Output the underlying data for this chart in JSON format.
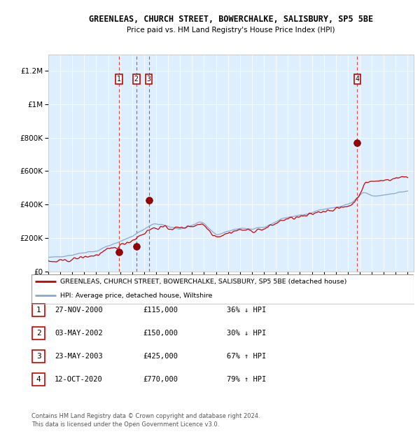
{
  "title": "GREENLEAS, CHURCH STREET, BOWERCHALKE, SALISBURY, SP5 5BE",
  "subtitle": "Price paid vs. HM Land Registry's House Price Index (HPI)",
  "ylabel_ticks": [
    "£0",
    "£200K",
    "£400K",
    "£600K",
    "£800K",
    "£1M",
    "£1.2M"
  ],
  "ytick_vals": [
    0,
    200000,
    400000,
    600000,
    800000,
    1000000,
    1200000
  ],
  "ylim": [
    0,
    1300000
  ],
  "xlim_start": 1995.0,
  "xlim_end": 2025.5,
  "plot_bg_color": "#ddeeff",
  "grid_color": "#ffffff",
  "red_line_color": "#cc0000",
  "blue_line_color": "#88aacc",
  "sale_dates": [
    2000.91,
    2002.34,
    2003.39,
    2020.79
  ],
  "sale_prices": [
    115000,
    150000,
    425000,
    770000
  ],
  "sale_labels": [
    "1",
    "2",
    "3",
    "4"
  ],
  "vline_color": "#dd4444",
  "legend_red_label": "GREENLEAS, CHURCH STREET, BOWERCHALKE, SALISBURY, SP5 5BE (detached house)",
  "legend_blue_label": "HPI: Average price, detached house, Wiltshire",
  "table_rows": [
    [
      "1",
      "27-NOV-2000",
      "£115,000",
      "36% ↓ HPI"
    ],
    [
      "2",
      "03-MAY-2002",
      "£150,000",
      "30% ↓ HPI"
    ],
    [
      "3",
      "23-MAY-2003",
      "£425,000",
      "67% ↑ HPI"
    ],
    [
      "4",
      "12-OCT-2020",
      "£770,000",
      "79% ↑ HPI"
    ]
  ],
  "footer": "Contains HM Land Registry data © Crown copyright and database right 2024.\nThis data is licensed under the Open Government Licence v3.0.",
  "hpi_years": [
    1995.0,
    1995.083,
    1995.167,
    1995.25,
    1995.333,
    1995.417,
    1995.5,
    1995.583,
    1995.667,
    1995.75,
    1995.833,
    1995.917,
    1996.0,
    1996.083,
    1996.167,
    1996.25,
    1996.333,
    1996.417,
    1996.5,
    1996.583,
    1996.667,
    1996.75,
    1996.833,
    1996.917,
    1997.0,
    1997.083,
    1997.167,
    1997.25,
    1997.333,
    1997.417,
    1997.5,
    1997.583,
    1997.667,
    1997.75,
    1997.833,
    1997.917,
    1998.0,
    1998.083,
    1998.167,
    1998.25,
    1998.333,
    1998.417,
    1998.5,
    1998.583,
    1998.667,
    1998.75,
    1998.833,
    1998.917,
    1999.0,
    1999.083,
    1999.167,
    1999.25,
    1999.333,
    1999.417,
    1999.5,
    1999.583,
    1999.667,
    1999.75,
    1999.833,
    1999.917,
    2000.0,
    2000.083,
    2000.167,
    2000.25,
    2000.333,
    2000.417,
    2000.5,
    2000.583,
    2000.667,
    2000.75,
    2000.833,
    2000.917,
    2001.0,
    2001.083,
    2001.167,
    2001.25,
    2001.333,
    2001.417,
    2001.5,
    2001.583,
    2001.667,
    2001.75,
    2001.833,
    2001.917,
    2002.0,
    2002.083,
    2002.167,
    2002.25,
    2002.333,
    2002.417,
    2002.5,
    2002.583,
    2002.667,
    2002.75,
    2002.833,
    2002.917,
    2003.0,
    2003.083,
    2003.167,
    2003.25,
    2003.333,
    2003.417,
    2003.5,
    2003.583,
    2003.667,
    2003.75,
    2003.833,
    2003.917,
    2004.0,
    2004.083,
    2004.167,
    2004.25,
    2004.333,
    2004.417,
    2004.5,
    2004.583,
    2004.667,
    2004.75,
    2004.833,
    2004.917,
    2005.0,
    2005.083,
    2005.167,
    2005.25,
    2005.333,
    2005.417,
    2005.5,
    2005.583,
    2005.667,
    2005.75,
    2005.833,
    2005.917,
    2006.0,
    2006.083,
    2006.167,
    2006.25,
    2006.333,
    2006.417,
    2006.5,
    2006.583,
    2006.667,
    2006.75,
    2006.833,
    2006.917,
    2007.0,
    2007.083,
    2007.167,
    2007.25,
    2007.333,
    2007.417,
    2007.5,
    2007.583,
    2007.667,
    2007.75,
    2007.833,
    2007.917,
    2008.0,
    2008.083,
    2008.167,
    2008.25,
    2008.333,
    2008.417,
    2008.5,
    2008.583,
    2008.667,
    2008.75,
    2008.833,
    2008.917,
    2009.0,
    2009.083,
    2009.167,
    2009.25,
    2009.333,
    2009.417,
    2009.5,
    2009.583,
    2009.667,
    2009.75,
    2009.833,
    2009.917,
    2010.0,
    2010.083,
    2010.167,
    2010.25,
    2010.333,
    2010.417,
    2010.5,
    2010.583,
    2010.667,
    2010.75,
    2010.833,
    2010.917,
    2011.0,
    2011.083,
    2011.167,
    2011.25,
    2011.333,
    2011.417,
    2011.5,
    2011.583,
    2011.667,
    2011.75,
    2011.833,
    2011.917,
    2012.0,
    2012.083,
    2012.167,
    2012.25,
    2012.333,
    2012.417,
    2012.5,
    2012.583,
    2012.667,
    2012.75,
    2012.833,
    2012.917,
    2013.0,
    2013.083,
    2013.167,
    2013.25,
    2013.333,
    2013.417,
    2013.5,
    2013.583,
    2013.667,
    2013.75,
    2013.833,
    2013.917,
    2014.0,
    2014.083,
    2014.167,
    2014.25,
    2014.333,
    2014.417,
    2014.5,
    2014.583,
    2014.667,
    2014.75,
    2014.833,
    2014.917,
    2015.0,
    2015.083,
    2015.167,
    2015.25,
    2015.333,
    2015.417,
    2015.5,
    2015.583,
    2015.667,
    2015.75,
    2015.833,
    2015.917,
    2016.0,
    2016.083,
    2016.167,
    2016.25,
    2016.333,
    2016.417,
    2016.5,
    2016.583,
    2016.667,
    2016.75,
    2016.833,
    2016.917,
    2017.0,
    2017.083,
    2017.167,
    2017.25,
    2017.333,
    2017.417,
    2017.5,
    2017.583,
    2017.667,
    2017.75,
    2017.833,
    2017.917,
    2018.0,
    2018.083,
    2018.167,
    2018.25,
    2018.333,
    2018.417,
    2018.5,
    2018.583,
    2018.667,
    2018.75,
    2018.833,
    2018.917,
    2019.0,
    2019.083,
    2019.167,
    2019.25,
    2019.333,
    2019.417,
    2019.5,
    2019.583,
    2019.667,
    2019.75,
    2019.833,
    2019.917,
    2020.0,
    2020.083,
    2020.167,
    2020.25,
    2020.333,
    2020.417,
    2020.5,
    2020.583,
    2020.667,
    2020.75,
    2020.833,
    2020.917,
    2021.0,
    2021.083,
    2021.167,
    2021.25,
    2021.333,
    2021.417,
    2021.5,
    2021.583,
    2021.667,
    2021.75,
    2021.833,
    2021.917,
    2022.0,
    2022.083,
    2022.167,
    2022.25,
    2022.333,
    2022.417,
    2022.5,
    2022.583,
    2022.667,
    2022.75,
    2022.833,
    2022.917,
    2023.0,
    2023.083,
    2023.167,
    2023.25,
    2023.333,
    2023.417,
    2023.5,
    2023.583,
    2023.667,
    2023.75,
    2023.833,
    2023.917,
    2024.0,
    2024.083,
    2024.167,
    2024.25,
    2024.333,
    2024.417,
    2024.5,
    2024.583,
    2024.667,
    2024.75,
    2024.833,
    2024.917,
    2025.0
  ],
  "hpi_base": [
    82000,
    82500,
    83000,
    83500,
    84000,
    84500,
    85000,
    85500,
    86000,
    86500,
    87000,
    87500,
    88000,
    88800,
    89600,
    90400,
    91200,
    92000,
    92800,
    93600,
    94400,
    95200,
    96000,
    96800,
    97600,
    99000,
    100400,
    101800,
    103200,
    104600,
    106000,
    107000,
    108000,
    109000,
    110000,
    111000,
    112000,
    113200,
    114400,
    115600,
    116800,
    117200,
    117600,
    118000,
    118400,
    118800,
    119200,
    119600,
    120000,
    122000,
    124000,
    127000,
    130000,
    133000,
    136000,
    139000,
    142000,
    145000,
    148000,
    150000,
    152000,
    154000,
    156000,
    158000,
    160000,
    162000,
    164000,
    166000,
    168000,
    170000,
    172000,
    175000,
    178000,
    181000,
    184000,
    187000,
    190000,
    193000,
    196000,
    198000,
    200000,
    202000,
    204000,
    206000,
    208000,
    212000,
    216000,
    220000,
    224000,
    228000,
    232000,
    236000,
    240000,
    243000,
    246000,
    249000,
    252000,
    256000,
    260000,
    264000,
    268000,
    271000,
    274000,
    277000,
    280000,
    281000,
    282000,
    282500,
    283000,
    283000,
    282000,
    281000,
    280000,
    279000,
    278000,
    277000,
    276000,
    274000,
    272000,
    270000,
    268000,
    266000,
    264000,
    263000,
    262000,
    261000,
    260000,
    259000,
    258000,
    257000,
    256000,
    255000,
    254000,
    255000,
    256000,
    258000,
    260000,
    262000,
    264000,
    266000,
    268000,
    270000,
    272000,
    274000,
    276000,
    278000,
    280000,
    283000,
    286000,
    289000,
    292000,
    294000,
    295000,
    294000,
    292000,
    289000,
    286000,
    280000,
    274000,
    268000,
    262000,
    256000,
    250000,
    244000,
    238000,
    232000,
    228000,
    224000,
    220000,
    220000,
    221000,
    222000,
    223000,
    224000,
    226000,
    228000,
    230000,
    232000,
    234000,
    236000,
    238000,
    240000,
    242000,
    244000,
    246000,
    248000,
    250000,
    252000,
    253000,
    254000,
    255000,
    256000,
    257000,
    258000,
    258000,
    258000,
    258000,
    257000,
    256000,
    255000,
    254000,
    253000,
    252000,
    252000,
    252000,
    252000,
    253000,
    254000,
    255000,
    256000,
    257000,
    258000,
    259000,
    260000,
    261000,
    262000,
    263000,
    265000,
    267000,
    270000,
    273000,
    276000,
    279000,
    282000,
    285000,
    288000,
    291000,
    294000,
    297000,
    300000,
    303000,
    306000,
    309000,
    312000,
    315000,
    317000,
    319000,
    320000,
    321000,
    322000,
    323000,
    324000,
    325000,
    326000,
    327000,
    328000,
    329000,
    330000,
    331000,
    332000,
    333000,
    334000,
    335000,
    336000,
    337000,
    338000,
    339000,
    340000,
    341000,
    342000,
    344000,
    346000,
    348000,
    350000,
    352000,
    354000,
    356000,
    358000,
    360000,
    362000,
    364000,
    366000,
    367000,
    368000,
    369000,
    370000,
    371000,
    372000,
    373000,
    374000,
    375000,
    376000,
    377000,
    378000,
    379000,
    380000,
    381000,
    382000,
    383000,
    384000,
    385000,
    386000,
    387000,
    388000,
    390000,
    392000,
    394000,
    396000,
    398000,
    400000,
    402000,
    404000,
    406000,
    408000,
    410000,
    415000,
    420000,
    425000,
    430000,
    435000,
    440000,
    445000,
    452000,
    458000,
    464000,
    468000,
    470000,
    470000,
    469000,
    467000,
    464000,
    461000,
    458000,
    456000,
    453000,
    451000,
    450000,
    449000,
    449000,
    450000,
    451000,
    452000,
    453000,
    454000,
    455000,
    456000,
    457000,
    458000,
    459000,
    460000,
    461000,
    462000,
    463000,
    464000,
    465000,
    466000,
    467000,
    468000,
    469000,
    470000,
    471000,
    472000,
    473000,
    474000,
    475000,
    476000,
    477000,
    478000,
    479000,
    480000,
    481000
  ],
  "red_base": [
    55000,
    55400,
    55800,
    56200,
    56600,
    57000,
    57400,
    57800,
    58200,
    58600,
    59000,
    59500,
    60000,
    60800,
    61600,
    62400,
    63200,
    64000,
    64800,
    65600,
    66400,
    67200,
    68000,
    69000,
    70000,
    71500,
    73000,
    74500,
    76000,
    77500,
    79000,
    80000,
    81000,
    82000,
    83000,
    84000,
    85000,
    86200,
    87400,
    88600,
    89800,
    90500,
    91200,
    91900,
    92600,
    93300,
    94000,
    95000,
    96000,
    98000,
    100000,
    103000,
    106000,
    109000,
    112000,
    115000,
    118000,
    121000,
    124000,
    126000,
    128000,
    130000,
    132000,
    134000,
    136000,
    138000,
    140000,
    142000,
    144000,
    146000,
    148000,
    151000,
    154000,
    157000,
    160000,
    163000,
    166000,
    169000,
    172000,
    174000,
    176000,
    178000,
    180000,
    182000,
    184000,
    188000,
    192000,
    196000,
    200000,
    204000,
    208000,
    212000,
    216000,
    219000,
    222000,
    225000,
    228000,
    232000,
    236000,
    240000,
    244000,
    247000,
    250000,
    252500,
    255000,
    256500,
    258000,
    259000,
    260000,
    260500,
    261000,
    261500,
    262000,
    262000,
    262000,
    262000,
    261500,
    261000,
    260500,
    260000,
    259000,
    258000,
    257000,
    257000,
    257000,
    257500,
    258000,
    258500,
    259000,
    259000,
    259000,
    259000,
    259000,
    260000,
    261000,
    262000,
    263000,
    264000,
    265000,
    266000,
    267000,
    268000,
    269000,
    270000,
    271000,
    272000,
    273000,
    275000,
    277000,
    279000,
    281000,
    283000,
    285000,
    284000,
    282000,
    279000,
    276000,
    270000,
    264000,
    258000,
    252000,
    246000,
    240000,
    234000,
    228000,
    222000,
    218000,
    214000,
    210000,
    210000,
    211000,
    212000,
    213000,
    214000,
    216000,
    218000,
    220000,
    222000,
    224000,
    226000,
    228000,
    230000,
    232000,
    234000,
    236000,
    238000,
    240000,
    242000,
    243000,
    244000,
    245000,
    246000,
    247000,
    248000,
    248000,
    248000,
    248000,
    247000,
    246000,
    245000,
    244000,
    243000,
    242000,
    242000,
    242000,
    242000,
    243000,
    244000,
    245000,
    246000,
    247000,
    248000,
    249000,
    250000,
    251000,
    252000,
    253000,
    255000,
    257000,
    260000,
    263000,
    266000,
    269000,
    272000,
    275000,
    278000,
    281000,
    284000,
    287000,
    290000,
    293000,
    296000,
    299000,
    302000,
    305000,
    307000,
    309000,
    310000,
    311000,
    312000,
    313000,
    314000,
    315000,
    316000,
    317000,
    318000,
    319000,
    320000,
    321000,
    322000,
    323000,
    324000,
    325000,
    326000,
    327000,
    328000,
    329000,
    330000,
    331000,
    332000,
    334000,
    336000,
    338000,
    340000,
    342000,
    344000,
    346000,
    348000,
    350000,
    352000,
    354000,
    356000,
    357000,
    358000,
    359000,
    360000,
    361000,
    362000,
    363000,
    364000,
    365000,
    366000,
    367000,
    368000,
    369000,
    370000,
    371000,
    372000,
    373000,
    374000,
    375000,
    376000,
    377000,
    378000,
    380000,
    382000,
    384000,
    386000,
    388000,
    390000,
    392000,
    394000,
    396000,
    398000,
    400000,
    405000,
    412000,
    419000,
    428000,
    437000,
    446000,
    455000,
    466000,
    478000,
    490000,
    500000,
    510000,
    518000,
    525000,
    530000,
    534000,
    537000,
    539000,
    540000,
    540000,
    539000,
    538000,
    537000,
    537000,
    538000,
    539000,
    540000,
    541000,
    542000,
    543000,
    544000,
    545000,
    546000,
    547000,
    548000,
    549000,
    550000,
    551000,
    552000,
    553000,
    554000,
    555000,
    556000,
    557000,
    558000,
    559000,
    560000,
    561000,
    562000,
    563000,
    564000,
    565000,
    566000,
    567000,
    568000,
    569000
  ]
}
